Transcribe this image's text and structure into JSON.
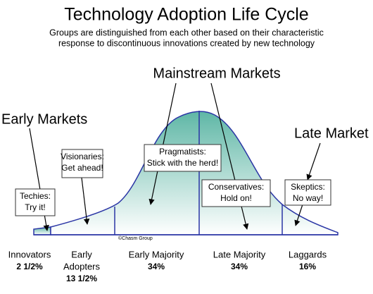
{
  "header": {
    "title": "Technology Adoption Life Cycle",
    "subtitle": [
      "Groups are distinguished from each other based on their characteristic",
      "response to discontinuous innovations created by new technology"
    ]
  },
  "markets": {
    "early": "Early Markets",
    "mainstream": "Mainstream Markets",
    "late": "Late Market"
  },
  "callouts": [
    {
      "lines": [
        "Techies:",
        "Try it!"
      ]
    },
    {
      "lines": [
        "Visionaries:",
        "Get ahead!"
      ]
    },
    {
      "lines": [
        "Pragmatists:",
        "Stick with the herd!"
      ]
    },
    {
      "lines": [
        "Conservatives:",
        "Hold on!"
      ]
    },
    {
      "lines": [
        "Skeptics:",
        "No way!"
      ]
    }
  ],
  "credit": "©Chasm Group",
  "groups": [
    {
      "name": [
        "Innovators"
      ],
      "share": "2 1/2%"
    },
    {
      "name": [
        "Early",
        "Adopters"
      ],
      "share": "13 1/2%"
    },
    {
      "name": [
        "Early Majority"
      ],
      "share": "34%"
    },
    {
      "name": [
        "Late Majority"
      ],
      "share": "34%"
    },
    {
      "name": [
        "Laggards"
      ],
      "share": "16%"
    }
  ]
}
